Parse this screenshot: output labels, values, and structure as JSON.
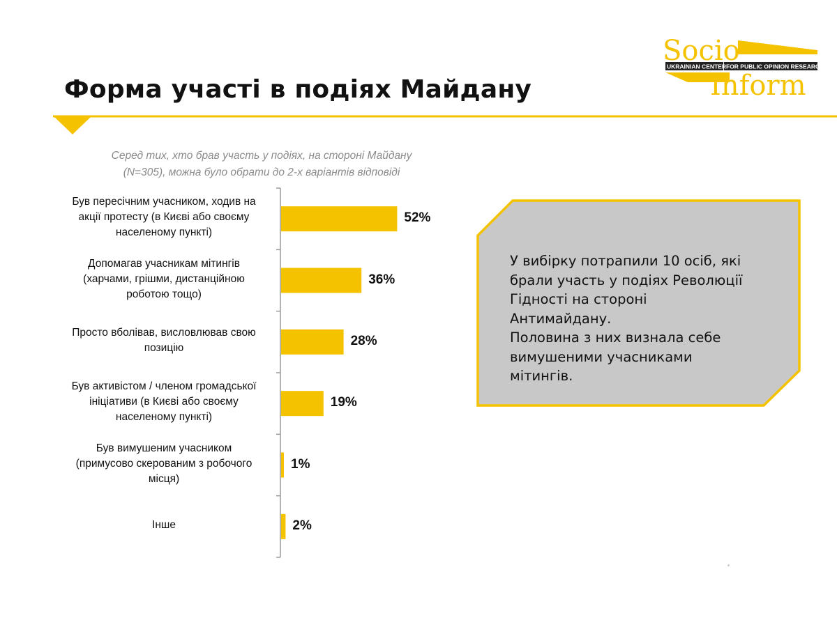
{
  "page": {
    "title": "Форма участі в подіях Майдану",
    "accent_color": "#f5c200",
    "box_fill": "#c8c8c8"
  },
  "logo": {
    "name": "SocioInform",
    "word_top": "Socio",
    "word_bottom": "Inform",
    "band_left": "UKRAINIAN CENTER",
    "band_right": "FOR PUBLIC OPINION RESEARCH",
    "color": "#f5c200"
  },
  "subtitle": {
    "line1": "Серед тих, хто брав участь у подіях, на стороні Майдану",
    "line2": "(N=305), можна було обрати до 2-х варіантів відповіді"
  },
  "chart_data": {
    "type": "bar",
    "orientation": "horizontal",
    "unit": "%",
    "bar_color": "#f5c200",
    "grid": false,
    "legend": "none",
    "xlim": [
      0,
      70
    ],
    "categories": [
      [
        "Був пересічним учасником, ходив на",
        "акції протесту (в Києві або своєму",
        "населеному пункті)"
      ],
      [
        "Допомагав учасникам мітингів",
        "(харчами, грішми, дистанційною",
        "роботою тощо)"
      ],
      [
        "Просто вболівав, висловлював свою",
        "позицію"
      ],
      [
        "Був активістом / членом громадської",
        "ініціативи (в Києві або своєму",
        "населеному пункті)"
      ],
      [
        "Був вимушеним учасником",
        "(примусово скерованим з робочого",
        "місця)"
      ],
      [
        "Інше"
      ]
    ],
    "values": [
      52,
      36,
      28,
      19,
      1,
      2
    ],
    "value_labels": [
      "52%",
      "36%",
      "28%",
      "19%",
      "1%",
      "2%"
    ]
  },
  "note": {
    "lines": [
      "У вибірку потрапили 10 осіб, які",
      "брали участь у подіях Революції",
      "Гідності на стороні",
      "Антимайдану.",
      "Половина з них визнала себе",
      "вимушеними учасниками",
      "мітингів."
    ]
  }
}
